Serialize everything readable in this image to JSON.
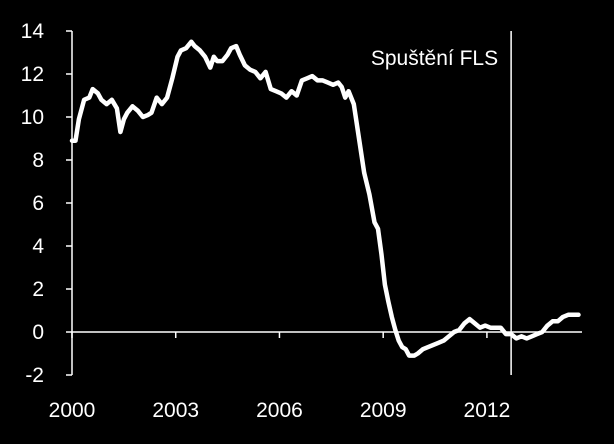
{
  "chart_data": {
    "type": "line",
    "title": "",
    "xlabel": "",
    "ylabel": "",
    "xlim": [
      2000,
      2014.75
    ],
    "ylim": [
      -2,
      14
    ],
    "xticks": [
      2000,
      2003,
      2006,
      2009,
      2012
    ],
    "yticks": [
      -2,
      0,
      2,
      4,
      6,
      8,
      10,
      12,
      14
    ],
    "grid": false,
    "legend": "none",
    "colors": {
      "background": "#000000",
      "line": "#ffffff",
      "axis": "#ffffff"
    },
    "annotation": {
      "label": "Spuštění FLS",
      "x": 2012.7
    },
    "series": [
      {
        "x": [
          2000.0,
          2000.1,
          2000.2,
          2000.35,
          2000.5,
          2000.6,
          2000.75,
          2000.85,
          2001.0,
          2001.15,
          2001.3,
          2001.4,
          2001.5,
          2001.6,
          2001.75,
          2001.9,
          2002.05,
          2002.2,
          2002.3,
          2002.45,
          2002.6,
          2002.75,
          2002.9,
          2003.05,
          2003.15,
          2003.3,
          2003.45,
          2003.55,
          2003.7,
          2003.85,
          2004.0,
          2004.1,
          2004.2,
          2004.35,
          2004.5,
          2004.6,
          2004.75,
          2004.85,
          2005.0,
          2005.15,
          2005.3,
          2005.45,
          2005.6,
          2005.75,
          2005.9,
          2006.05,
          2006.2,
          2006.35,
          2006.5,
          2006.65,
          2006.8,
          2006.95,
          2007.1,
          2007.25,
          2007.4,
          2007.55,
          2007.7,
          2007.8,
          2007.9,
          2008.0,
          2008.15,
          2008.3,
          2008.45,
          2008.6,
          2008.75,
          2008.85,
          2008.95,
          2009.05,
          2009.15,
          2009.25,
          2009.35,
          2009.45,
          2009.55,
          2009.65,
          2009.75,
          2009.9,
          2010.0,
          2010.15,
          2010.3,
          2010.45,
          2010.6,
          2010.75,
          2010.9,
          2011.05,
          2011.2,
          2011.35,
          2011.5,
          2011.65,
          2011.8,
          2011.95,
          2012.1,
          2012.25,
          2012.4,
          2012.55,
          2012.7,
          2012.85,
          2013.0,
          2013.15,
          2013.3,
          2013.45,
          2013.6,
          2013.75,
          2013.9,
          2014.05,
          2014.2,
          2014.35,
          2014.5,
          2014.65
        ],
        "y": [
          8.9,
          8.9,
          9.9,
          10.8,
          10.9,
          11.3,
          11.1,
          10.8,
          10.6,
          10.8,
          10.4,
          9.3,
          9.9,
          10.2,
          10.5,
          10.3,
          10.0,
          10.1,
          10.2,
          10.9,
          10.6,
          10.9,
          11.8,
          12.8,
          13.1,
          13.2,
          13.5,
          13.3,
          13.1,
          12.8,
          12.3,
          12.8,
          12.6,
          12.6,
          12.9,
          13.2,
          13.3,
          12.9,
          12.4,
          12.2,
          12.1,
          11.8,
          12.1,
          11.3,
          11.2,
          11.1,
          10.9,
          11.2,
          11.0,
          11.7,
          11.8,
          11.9,
          11.7,
          11.7,
          11.6,
          11.5,
          11.6,
          11.4,
          10.9,
          11.2,
          10.6,
          9.0,
          7.4,
          6.4,
          5.1,
          4.8,
          3.6,
          2.2,
          1.4,
          0.7,
          0.1,
          -0.4,
          -0.7,
          -0.8,
          -1.1,
          -1.1,
          -1.0,
          -0.8,
          -0.7,
          -0.6,
          -0.5,
          -0.4,
          -0.2,
          0.0,
          0.1,
          0.4,
          0.6,
          0.4,
          0.2,
          0.3,
          0.2,
          0.2,
          0.2,
          -0.1,
          -0.1,
          -0.3,
          -0.2,
          -0.3,
          -0.2,
          -0.1,
          0.0,
          0.3,
          0.5,
          0.5,
          0.7,
          0.8,
          0.8,
          0.8
        ]
      }
    ]
  }
}
